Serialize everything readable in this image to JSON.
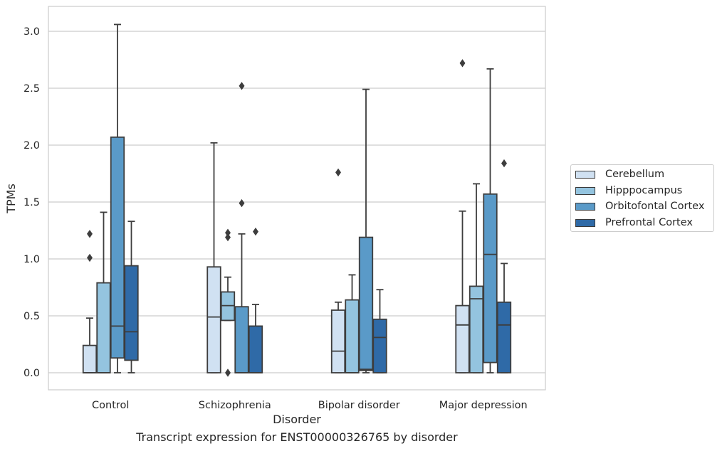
{
  "chart_data": {
    "type": "boxplot",
    "xlabel": "Disorder",
    "ylabel": "TPMs",
    "caption": "Transcript expression for ENST00000326765 by disorder",
    "ylim": [
      -0.15,
      3.22
    ],
    "yticks": [
      "0.0",
      "0.5",
      "1.0",
      "1.5",
      "2.0",
      "2.5",
      "3.0"
    ],
    "grid": true,
    "legend_position": "right-outside",
    "categories": [
      "Control",
      "Schizophrenia",
      "Bipolar disorder",
      "Major depression"
    ],
    "series": [
      {
        "name": "Cerebellum",
        "color": "#d0e1f2",
        "boxes": [
          {
            "min": 0.0,
            "q1": 0.0,
            "median": 0.0,
            "q3": 0.24,
            "max": 0.48,
            "outliers": [
              1.01,
              1.22
            ]
          },
          {
            "min": 0.0,
            "q1": 0.0,
            "median": 0.49,
            "q3": 0.93,
            "max": 2.02,
            "outliers": []
          },
          {
            "min": 0.0,
            "q1": 0.0,
            "median": 0.19,
            "q3": 0.55,
            "max": 0.62,
            "outliers": [
              1.76
            ]
          },
          {
            "min": 0.0,
            "q1": 0.0,
            "median": 0.42,
            "q3": 0.59,
            "max": 1.42,
            "outliers": [
              2.72
            ]
          }
        ]
      },
      {
        "name": "Hipppocampus",
        "color": "#94c4df",
        "boxes": [
          {
            "min": 0.0,
            "q1": 0.0,
            "median": 0.0,
            "q3": 0.79,
            "max": 1.41,
            "outliers": []
          },
          {
            "min": 0.46,
            "q1": 0.46,
            "median": 0.59,
            "q3": 0.71,
            "max": 0.84,
            "outliers": [
              0.0,
              1.19,
              1.23
            ]
          },
          {
            "min": 0.0,
            "q1": 0.0,
            "median": 0.0,
            "q3": 0.64,
            "max": 0.86,
            "outliers": []
          },
          {
            "min": 0.0,
            "q1": 0.0,
            "median": 0.65,
            "q3": 0.76,
            "max": 1.66,
            "outliers": []
          }
        ]
      },
      {
        "name": "Orbitofontal Cortex",
        "color": "#5a9ac8",
        "boxes": [
          {
            "min": 0.0,
            "q1": 0.13,
            "median": 0.41,
            "q3": 2.07,
            "max": 3.06,
            "outliers": []
          },
          {
            "min": 0.0,
            "q1": 0.0,
            "median": 0.0,
            "q3": 0.58,
            "max": 1.22,
            "outliers": [
              1.49,
              2.52
            ]
          },
          {
            "min": 0.0,
            "q1": 0.02,
            "median": 0.03,
            "q3": 1.19,
            "max": 2.49,
            "outliers": []
          },
          {
            "min": 0.0,
            "q1": 0.09,
            "median": 1.04,
            "q3": 1.57,
            "max": 2.67,
            "outliers": []
          }
        ]
      },
      {
        "name": "Prefrontal Cortex",
        "color": "#2f6aa7",
        "boxes": [
          {
            "min": 0.0,
            "q1": 0.11,
            "median": 0.36,
            "q3": 0.94,
            "max": 1.33,
            "outliers": []
          },
          {
            "min": 0.0,
            "q1": 0.0,
            "median": 0.0,
            "q3": 0.41,
            "max": 0.6,
            "outliers": [
              1.24
            ]
          },
          {
            "min": 0.0,
            "q1": 0.0,
            "median": 0.31,
            "q3": 0.47,
            "max": 0.73,
            "outliers": []
          },
          {
            "min": 0.0,
            "q1": 0.0,
            "median": 0.42,
            "q3": 0.62,
            "max": 0.96,
            "outliers": [
              1.84
            ]
          }
        ]
      }
    ]
  }
}
